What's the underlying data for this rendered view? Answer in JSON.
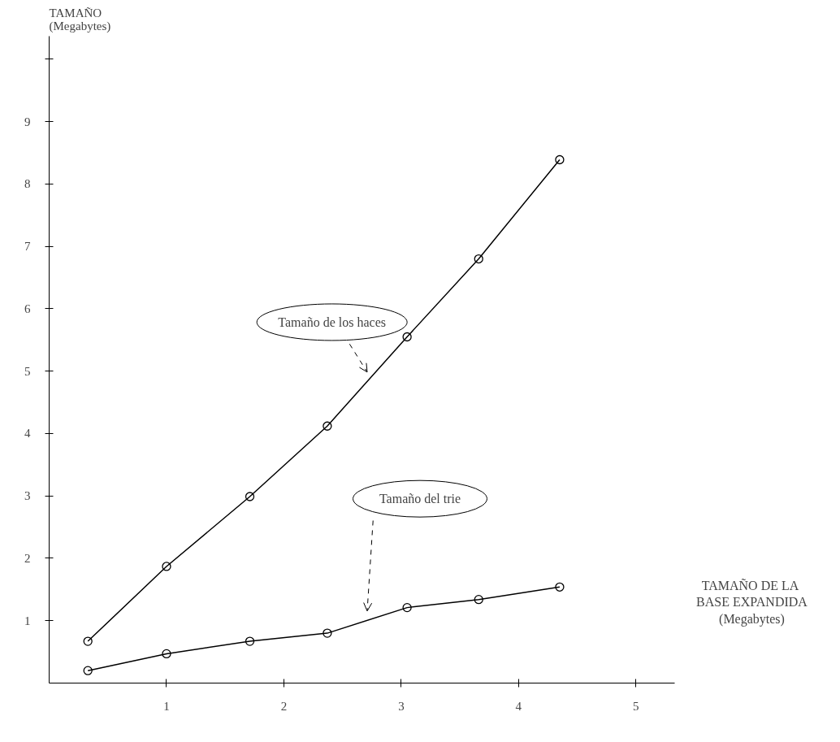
{
  "chart_data": {
    "type": "line",
    "xlabel": "TAMAÑO  DE LA\nBASE EXPANDIDA\n(Megabytes)",
    "ylabel": "TAMAÑO\n(Megabytes)",
    "x": [
      0.33,
      1.0,
      1.71,
      2.37,
      3.05,
      3.66,
      4.35
    ],
    "series": [
      {
        "name": "Tamaño de los haces",
        "color": "#000000",
        "values": [
          0.67,
          1.87,
          2.99,
          4.12,
          5.55,
          6.8,
          8.39
        ]
      },
      {
        "name": "Tamaño del trie",
        "color": "#000000",
        "values": [
          0.2,
          0.47,
          0.67,
          0.8,
          1.21,
          1.34,
          1.54
        ]
      }
    ],
    "xlim": [
      0,
      5.33
    ],
    "ylim": [
      0,
      10.37
    ],
    "xticks": [
      1,
      2,
      3,
      4,
      5
    ],
    "yticks": [
      1,
      2,
      3,
      4,
      5,
      6,
      7,
      8,
      9,
      {
        "value": 10,
        "label": null
      }
    ],
    "marker": "circle",
    "line_style": "solid",
    "grid": false
  }
}
